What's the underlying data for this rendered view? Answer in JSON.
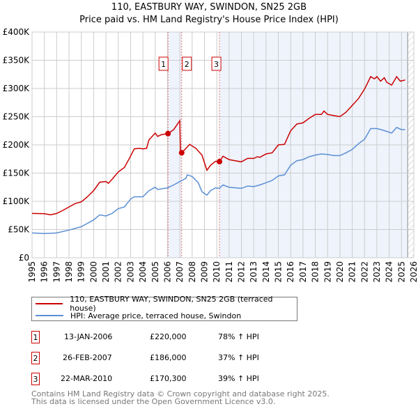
{
  "chart_data": {
    "type": "line",
    "title": "110, EASTBURY WAY, SWINDON, SN25 2GB",
    "subtitle": "Price paid vs. HM Land Registry's House Price Index (HPI)",
    "xlim": [
      1995,
      2026
    ],
    "ylim": [
      0,
      400000
    ],
    "yticks": [
      {
        "v": 0,
        "label": "£0"
      },
      {
        "v": 50000,
        "label": "£50K"
      },
      {
        "v": 100000,
        "label": "£100K"
      },
      {
        "v": 150000,
        "label": "£150K"
      },
      {
        "v": 200000,
        "label": "£200K"
      },
      {
        "v": 250000,
        "label": "£250K"
      },
      {
        "v": 300000,
        "label": "£300K"
      },
      {
        "v": 350000,
        "label": "£350K"
      },
      {
        "v": 400000,
        "label": "£400K"
      }
    ],
    "xticks": [
      "1995",
      "1996",
      "1997",
      "1998",
      "1999",
      "2000",
      "2001",
      "2002",
      "2003",
      "2004",
      "2005",
      "2006",
      "2007",
      "2008",
      "2009",
      "2010",
      "2011",
      "2012",
      "2013",
      "2014",
      "2015",
      "2016",
      "2017",
      "2018",
      "2019",
      "2020",
      "2021",
      "2022",
      "2023",
      "2024",
      "2025",
      "2026"
    ],
    "grid": true,
    "colors": {
      "price": "#cc0000",
      "hpi": "#5b8fd4",
      "shade": "#eef3fc"
    },
    "shaded_ranges": [
      [
        2006.04,
        2007.15
      ],
      [
        2010.22,
        2025.5
      ]
    ],
    "forecast_from": 2025.5,
    "series": [
      {
        "name": "110, EASTBURY WAY, SWINDON, SN25 2GB (terraced house)",
        "key": "price",
        "x": [
          1995,
          1996,
          1996.5,
          1997,
          1997.5,
          1998,
          1998.5,
          1999,
          1999.5,
          2000,
          2000.5,
          2001,
          2001.2,
          2001.5,
          2002,
          2002.5,
          2003,
          2003.3,
          2003.7,
          2004,
          2004.3,
          2004.5,
          2005,
          2005.2,
          2005.5,
          2006.04,
          2006.5,
          2007.0,
          2007.05,
          2007.15,
          2007.5,
          2007.8,
          2008.3,
          2008.8,
          2009.2,
          2009.5,
          2009.9,
          2010.22,
          2010.5,
          2011,
          2011.5,
          2012,
          2012.5,
          2013,
          2013.3,
          2013.5,
          2014,
          2014.5,
          2015,
          2015.5,
          2016,
          2016.5,
          2017,
          2017.5,
          2018,
          2018.5,
          2018.7,
          2019,
          2019.5,
          2020,
          2020.5,
          2021,
          2021.5,
          2022,
          2022.5,
          2022.8,
          2023,
          2023.3,
          2023.6,
          2023.8,
          2024.2,
          2024.6,
          2024.9,
          2025.3
        ],
        "y": [
          78500,
          78000,
          76000,
          78500,
          84000,
          90000,
          96000,
          99000,
          108000,
          119000,
          134000,
          135000,
          132000,
          139000,
          152000,
          160000,
          180000,
          193000,
          194000,
          193000,
          194000,
          209000,
          221000,
          215000,
          218000,
          220000,
          227000,
          243000,
          188000,
          186000,
          194000,
          201000,
          194000,
          182000,
          155000,
          164000,
          171000,
          170300,
          180000,
          174000,
          172000,
          170000,
          176000,
          176000,
          179000,
          178000,
          184000,
          186000,
          200000,
          201000,
          225000,
          237000,
          239000,
          247000,
          254000,
          254000,
          260000,
          254000,
          252000,
          250000,
          258000,
          270000,
          282000,
          299000,
          321000,
          317000,
          321000,
          313000,
          319000,
          311000,
          306000,
          321000,
          313000,
          315000
        ]
      },
      {
        "name": "HPI: Average price, terraced house, Swindon",
        "key": "hpi",
        "x": [
          1995,
          1996,
          1997,
          1998,
          1999,
          1999.5,
          2000,
          2000.5,
          2001,
          2001.5,
          2002,
          2002.5,
          2003,
          2003.3,
          2004,
          2004.5,
          2005,
          2005.2,
          2006,
          2006.5,
          2007,
          2007.5,
          2007.6,
          2008,
          2008.5,
          2008.8,
          2009.2,
          2009.5,
          2009.9,
          2010.2,
          2010.5,
          2011,
          2011.5,
          2012,
          2012.5,
          2013,
          2013.5,
          2014,
          2014.5,
          2015,
          2015.5,
          2016,
          2016.5,
          2017,
          2017.5,
          2018,
          2018.5,
          2019,
          2019.5,
          2020,
          2020.5,
          2021,
          2021.5,
          2022,
          2022.5,
          2023,
          2023.5,
          2024.2,
          2024.6,
          2025,
          2025.3
        ],
        "y": [
          44000,
          43000,
          44000,
          49000,
          55000,
          61000,
          67000,
          76000,
          74000,
          78500,
          87000,
          90000,
          104000,
          108000,
          108000,
          119000,
          125000,
          121000,
          124000,
          129000,
          135000,
          141000,
          147000,
          144000,
          133000,
          117000,
          111000,
          119000,
          124000,
          123000,
          129000,
          125000,
          124000,
          123000,
          127000,
          126000,
          129000,
          133000,
          137000,
          145000,
          147000,
          164000,
          172000,
          174000,
          179000,
          182000,
          184000,
          183000,
          181000,
          181000,
          186000,
          192000,
          202000,
          210000,
          229000,
          229000,
          226000,
          221000,
          231000,
          227000,
          227000
        ]
      }
    ],
    "sales": [
      {
        "n": "1",
        "x": 2006.04,
        "y": 220000,
        "date": "13-JAN-2006",
        "price": "£220,000",
        "hpi": "78% ↑ HPI"
      },
      {
        "n": "2",
        "x": 2007.15,
        "y": 186000,
        "date": "26-FEB-2007",
        "price": "£186,000",
        "hpi": "37% ↑ HPI"
      },
      {
        "n": "3",
        "x": 2010.22,
        "y": 170300,
        "date": "22-MAR-2010",
        "price": "£170,300",
        "hpi": "39% ↑ HPI"
      }
    ]
  },
  "footer": {
    "line1": "Contains HM Land Registry data © Crown copyright and database right 2025.",
    "line2": "This data is licensed under the Open Government Licence v3.0."
  }
}
